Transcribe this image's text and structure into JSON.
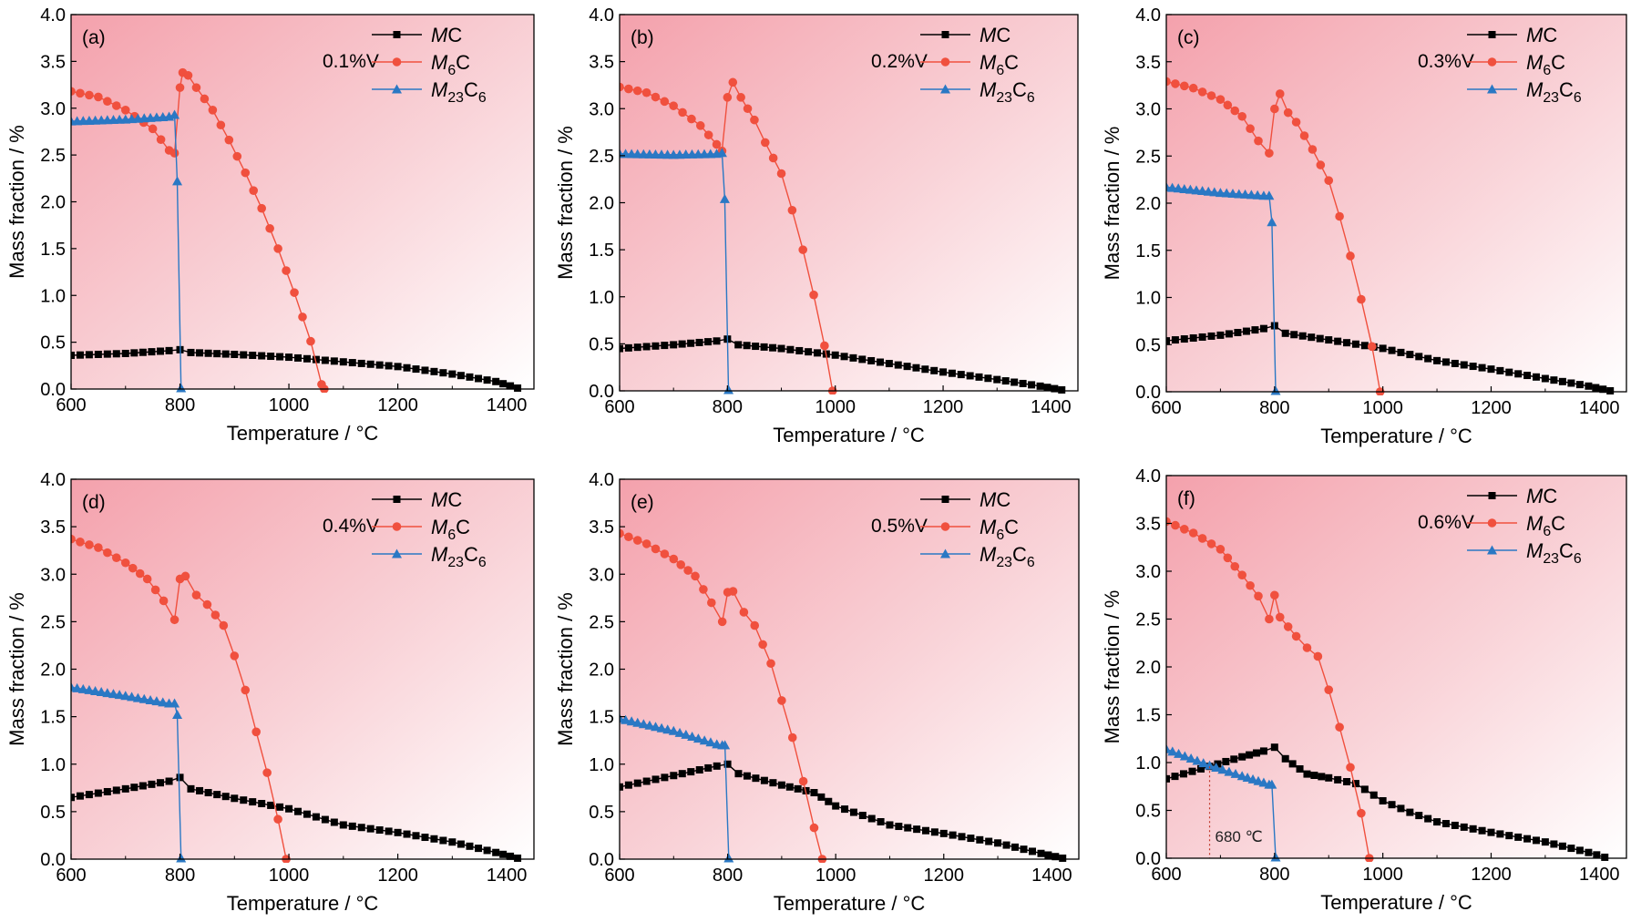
{
  "colors": {
    "MC": "#000000",
    "M6C": "#f0503e",
    "M23C6": "#2a78c4",
    "bg_strong": "#f4a1ac",
    "bg_weak": "#ffffff",
    "annotation": "#c0392b"
  },
  "legend": {
    "MC": {
      "base": "M",
      "sub": "",
      "tail": "C"
    },
    "M6C": {
      "base": "M",
      "sub": "6",
      "tail": "C"
    },
    "M23C6": {
      "base": "M",
      "sub": "23",
      "tail": "C",
      "sub2": "6"
    }
  },
  "chart_data": [
    {
      "type": "line",
      "panel_label": "(a)",
      "condition": "0.1%V",
      "xlabel": "Temperature / °C",
      "ylabel": "Mass fraction / %",
      "xlim": [
        600,
        1450
      ],
      "ylim": [
        0,
        4.0
      ],
      "xticks": [
        "600",
        "800",
        "1000",
        "1200",
        "1400"
      ],
      "yticks": [
        "0.0",
        "0.5",
        "1.0",
        "1.5",
        "2.0",
        "2.5",
        "3.0",
        "3.5",
        "4.0"
      ],
      "series": [
        {
          "name": "MC",
          "points": [
            [
              600,
              0.36
            ],
            [
              700,
              0.38
            ],
            [
              780,
              0.41
            ],
            [
              800,
              0.42
            ],
            [
              820,
              0.39
            ],
            [
              900,
              0.37
            ],
            [
              1000,
              0.34
            ],
            [
              1100,
              0.29
            ],
            [
              1200,
              0.24
            ],
            [
              1300,
              0.16
            ],
            [
              1380,
              0.08
            ],
            [
              1420,
              0.01
            ]
          ]
        },
        {
          "name": "M6C",
          "points": [
            [
              600,
              3.18
            ],
            [
              650,
              3.12
            ],
            [
              700,
              2.98
            ],
            [
              750,
              2.78
            ],
            [
              780,
              2.55
            ],
            [
              790,
              2.52
            ],
            [
              800,
              3.22
            ],
            [
              805,
              3.38
            ],
            [
              815,
              3.35
            ],
            [
              830,
              3.22
            ],
            [
              860,
              2.98
            ],
            [
              890,
              2.66
            ],
            [
              920,
              2.31
            ],
            [
              950,
              1.93
            ],
            [
              980,
              1.5
            ],
            [
              1010,
              1.03
            ],
            [
              1040,
              0.51
            ],
            [
              1060,
              0.05
            ],
            [
              1065,
              0.0
            ]
          ]
        },
        {
          "name": "M23C6",
          "points": [
            [
              600,
              2.86
            ],
            [
              700,
              2.88
            ],
            [
              780,
              2.91
            ],
            [
              790,
              2.93
            ],
            [
              795,
              2.22
            ],
            [
              802,
              0.01
            ]
          ]
        }
      ]
    },
    {
      "type": "line",
      "panel_label": "(b)",
      "condition": "0.2%V",
      "xlabel": "Temperature / °C",
      "ylabel": "Mass fraction / %",
      "xlim": [
        600,
        1450
      ],
      "ylim": [
        0,
        4.0
      ],
      "xticks": [
        "600",
        "800",
        "1000",
        "1200",
        "1400"
      ],
      "yticks": [
        "0.0",
        "0.5",
        "1.0",
        "1.5",
        "2.0",
        "2.5",
        "3.0",
        "3.5",
        "4.0"
      ],
      "series": [
        {
          "name": "MC",
          "points": [
            [
              600,
              0.45
            ],
            [
              700,
              0.49
            ],
            [
              780,
              0.53
            ],
            [
              800,
              0.55
            ],
            [
              820,
              0.49
            ],
            [
              900,
              0.45
            ],
            [
              1000,
              0.38
            ],
            [
              1100,
              0.29
            ],
            [
              1200,
              0.2
            ],
            [
              1300,
              0.12
            ],
            [
              1380,
              0.05
            ],
            [
              1420,
              0.01
            ]
          ]
        },
        {
          "name": "M6C",
          "points": [
            [
              600,
              3.23
            ],
            [
              650,
              3.17
            ],
            [
              700,
              3.03
            ],
            [
              750,
              2.82
            ],
            [
              780,
              2.62
            ],
            [
              790,
              2.55
            ],
            [
              800,
              3.12
            ],
            [
              810,
              3.28
            ],
            [
              825,
              3.12
            ],
            [
              850,
              2.88
            ],
            [
              870,
              2.64
            ],
            [
              900,
              2.31
            ],
            [
              920,
              1.92
            ],
            [
              940,
              1.5
            ],
            [
              960,
              1.02
            ],
            [
              980,
              0.48
            ],
            [
              995,
              0.0
            ]
          ]
        },
        {
          "name": "M23C6",
          "points": [
            [
              600,
              2.52
            ],
            [
              700,
              2.51
            ],
            [
              780,
              2.52
            ],
            [
              790,
              2.53
            ],
            [
              795,
              2.04
            ],
            [
              802,
              0.01
            ]
          ]
        }
      ]
    },
    {
      "type": "line",
      "panel_label": "(c)",
      "condition": "0.3%V",
      "xlabel": "Temperature / °C",
      "ylabel": "Mass fraction / %",
      "xlim": [
        600,
        1450
      ],
      "ylim": [
        0,
        4.0
      ],
      "xticks": [
        "600",
        "800",
        "1000",
        "1200",
        "1400"
      ],
      "yticks": [
        "0.0",
        "0.5",
        "1.0",
        "1.5",
        "2.0",
        "2.5",
        "3.0",
        "3.5",
        "4.0"
      ],
      "series": [
        {
          "name": "MC",
          "points": [
            [
              600,
              0.54
            ],
            [
              700,
              0.6
            ],
            [
              780,
              0.67
            ],
            [
              800,
              0.7
            ],
            [
              820,
              0.62
            ],
            [
              900,
              0.55
            ],
            [
              1000,
              0.46
            ],
            [
              1100,
              0.33
            ],
            [
              1200,
              0.24
            ],
            [
              1300,
              0.14
            ],
            [
              1380,
              0.06
            ],
            [
              1420,
              0.01
            ]
          ]
        },
        {
          "name": "M6C",
          "points": [
            [
              600,
              3.29
            ],
            [
              650,
              3.22
            ],
            [
              700,
              3.1
            ],
            [
              740,
              2.92
            ],
            [
              770,
              2.66
            ],
            [
              790,
              2.53
            ],
            [
              800,
              3.0
            ],
            [
              810,
              3.16
            ],
            [
              825,
              2.96
            ],
            [
              840,
              2.86
            ],
            [
              870,
              2.57
            ],
            [
              900,
              2.24
            ],
            [
              920,
              1.86
            ],
            [
              940,
              1.44
            ],
            [
              960,
              0.98
            ],
            [
              980,
              0.48
            ],
            [
              995,
              0.0
            ]
          ]
        },
        {
          "name": "M23C6",
          "points": [
            [
              600,
              2.17
            ],
            [
              700,
              2.11
            ],
            [
              780,
              2.08
            ],
            [
              790,
              2.08
            ],
            [
              795,
              1.8
            ],
            [
              802,
              0.01
            ]
          ]
        }
      ]
    },
    {
      "type": "line",
      "panel_label": "(d)",
      "condition": "0.4%V",
      "xlabel": "Temperature / °C",
      "ylabel": "Mass fraction / %",
      "xlim": [
        600,
        1450
      ],
      "ylim": [
        0,
        4.0
      ],
      "xticks": [
        "600",
        "800",
        "1000",
        "1200",
        "1400"
      ],
      "yticks": [
        "0.0",
        "0.5",
        "1.0",
        "1.5",
        "2.0",
        "2.5",
        "3.0",
        "3.5",
        "4.0"
      ],
      "series": [
        {
          "name": "MC",
          "points": [
            [
              600,
              0.65
            ],
            [
              700,
              0.74
            ],
            [
              780,
              0.82
            ],
            [
              800,
              0.86
            ],
            [
              820,
              0.74
            ],
            [
              900,
              0.64
            ],
            [
              1000,
              0.53
            ],
            [
              1100,
              0.36
            ],
            [
              1200,
              0.28
            ],
            [
              1300,
              0.18
            ],
            [
              1380,
              0.07
            ],
            [
              1420,
              0.01
            ]
          ]
        },
        {
          "name": "M6C",
          "points": [
            [
              600,
              3.37
            ],
            [
              650,
              3.28
            ],
            [
              700,
              3.12
            ],
            [
              740,
              2.95
            ],
            [
              770,
              2.72
            ],
            [
              790,
              2.52
            ],
            [
              800,
              2.95
            ],
            [
              810,
              2.98
            ],
            [
              830,
              2.78
            ],
            [
              850,
              2.68
            ],
            [
              880,
              2.46
            ],
            [
              900,
              2.14
            ],
            [
              920,
              1.78
            ],
            [
              940,
              1.34
            ],
            [
              960,
              0.91
            ],
            [
              980,
              0.42
            ],
            [
              995,
              0.0
            ]
          ]
        },
        {
          "name": "M23C6",
          "points": [
            [
              600,
              1.81
            ],
            [
              700,
              1.72
            ],
            [
              780,
              1.64
            ],
            [
              790,
              1.64
            ],
            [
              795,
              1.52
            ],
            [
              802,
              0.01
            ]
          ]
        }
      ]
    },
    {
      "type": "line",
      "panel_label": "(e)",
      "condition": "0.5%V",
      "xlabel": "Temperature / °C",
      "ylabel": "Mass fraction / %",
      "xlim": [
        600,
        1450
      ],
      "ylim": [
        0,
        4.0
      ],
      "xticks": [
        "600",
        "800",
        "1000",
        "1200",
        "1400"
      ],
      "yticks": [
        "0.0",
        "0.5",
        "1.0",
        "1.5",
        "2.0",
        "2.5",
        "3.0",
        "3.5",
        "4.0"
      ],
      "series": [
        {
          "name": "MC",
          "points": [
            [
              600,
              0.76
            ],
            [
              700,
              0.88
            ],
            [
              780,
              0.98
            ],
            [
              800,
              1.0
            ],
            [
              820,
              0.9
            ],
            [
              900,
              0.78
            ],
            [
              960,
              0.7
            ],
            [
              1000,
              0.56
            ],
            [
              1100,
              0.36
            ],
            [
              1200,
              0.27
            ],
            [
              1300,
              0.17
            ],
            [
              1380,
              0.06
            ],
            [
              1420,
              0.01
            ]
          ]
        },
        {
          "name": "M6C",
          "points": [
            [
              600,
              3.43
            ],
            [
              650,
              3.32
            ],
            [
              700,
              3.16
            ],
            [
              740,
              2.98
            ],
            [
              770,
              2.7
            ],
            [
              790,
              2.5
            ],
            [
              800,
              2.81
            ],
            [
              810,
              2.82
            ],
            [
              830,
              2.6
            ],
            [
              850,
              2.46
            ],
            [
              880,
              2.06
            ],
            [
              900,
              1.67
            ],
            [
              920,
              1.28
            ],
            [
              940,
              0.82
            ],
            [
              960,
              0.33
            ],
            [
              975,
              0.0
            ]
          ]
        },
        {
          "name": "M23C6",
          "points": [
            [
              600,
              1.48
            ],
            [
              700,
              1.35
            ],
            [
              780,
              1.21
            ],
            [
              790,
              1.2
            ],
            [
              795,
              1.2
            ],
            [
              802,
              0.01
            ]
          ]
        }
      ]
    },
    {
      "type": "line",
      "panel_label": "(f)",
      "condition": "0.6%V",
      "xlabel": "Temperature / °C",
      "ylabel": "Mass fraction / %",
      "xlim": [
        600,
        1450
      ],
      "ylim": [
        0,
        4.0
      ],
      "xticks": [
        "600",
        "800",
        "1000",
        "1200",
        "1400"
      ],
      "yticks": [
        "0.0",
        "0.5",
        "1.0",
        "1.5",
        "2.0",
        "2.5",
        "3.0",
        "3.5",
        "4.0"
      ],
      "annotation": {
        "text": "680 ℃",
        "x": 680,
        "y": 0.96
      },
      "series": [
        {
          "name": "MC",
          "points": [
            [
              600,
              0.83
            ],
            [
              680,
              0.96
            ],
            [
              740,
              1.06
            ],
            [
              780,
              1.12
            ],
            [
              800,
              1.16
            ],
            [
              820,
              1.04
            ],
            [
              860,
              0.88
            ],
            [
              900,
              0.84
            ],
            [
              950,
              0.78
            ],
            [
              1000,
              0.6
            ],
            [
              1050,
              0.48
            ],
            [
              1100,
              0.38
            ],
            [
              1200,
              0.27
            ],
            [
              1300,
              0.17
            ],
            [
              1380,
              0.06
            ],
            [
              1410,
              0.01
            ]
          ]
        },
        {
          "name": "M6C",
          "points": [
            [
              600,
              3.52
            ],
            [
              650,
              3.4
            ],
            [
              700,
              3.23
            ],
            [
              740,
              2.96
            ],
            [
              770,
              2.74
            ],
            [
              790,
              2.5
            ],
            [
              800,
              2.75
            ],
            [
              810,
              2.52
            ],
            [
              840,
              2.32
            ],
            [
              860,
              2.2
            ],
            [
              880,
              2.11
            ],
            [
              900,
              1.76
            ],
            [
              920,
              1.37
            ],
            [
              940,
              0.95
            ],
            [
              960,
              0.47
            ],
            [
              975,
              0.0
            ]
          ]
        },
        {
          "name": "M23C6",
          "points": [
            [
              600,
              1.14
            ],
            [
              680,
              0.97
            ],
            [
              740,
              0.86
            ],
            [
              780,
              0.79
            ],
            [
              790,
              0.77
            ],
            [
              795,
              0.77
            ],
            [
              802,
              0.01
            ]
          ]
        }
      ]
    }
  ]
}
